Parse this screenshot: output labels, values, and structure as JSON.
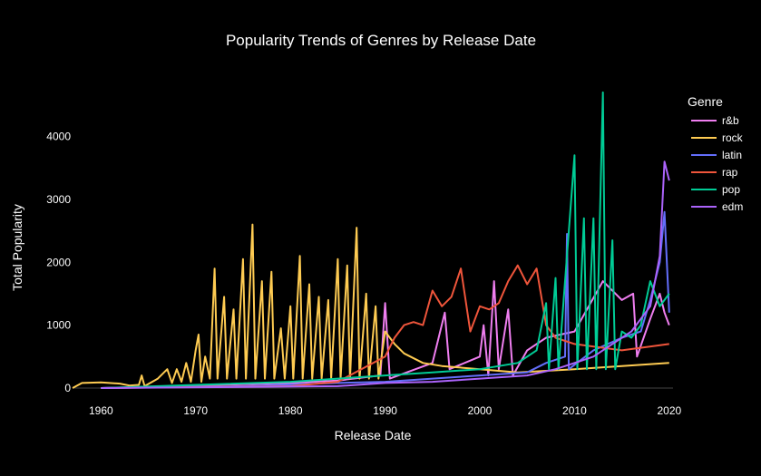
{
  "chart_data": {
    "type": "line",
    "title": "Popularity Trends of Genres by Release Date",
    "xlabel": "Release Date",
    "ylabel": "Total Popularity",
    "xlim": [
      1957,
      2020.4
    ],
    "ylim": [
      0,
      4800
    ],
    "x_ticks": [
      1960,
      1970,
      1980,
      1990,
      2000,
      2010,
      2020
    ],
    "y_ticks": [
      0,
      1000,
      2000,
      3000,
      4000
    ],
    "grid": false,
    "legend_position": "right",
    "legend_title": "Genre",
    "series": [
      {
        "name": "r&b",
        "color": "#ef7ef0",
        "points": [
          [
            1960,
            0
          ],
          [
            1970,
            40
          ],
          [
            1980,
            80
          ],
          [
            1985,
            120
          ],
          [
            1989.5,
            200
          ],
          [
            1990,
            1350
          ],
          [
            1990.5,
            150
          ],
          [
            1995,
            400
          ],
          [
            1996.3,
            1200
          ],
          [
            1996.8,
            300
          ],
          [
            2000,
            500
          ],
          [
            2000.4,
            1000
          ],
          [
            2000.9,
            200
          ],
          [
            2001.5,
            1700
          ],
          [
            2002,
            300
          ],
          [
            2003,
            1250
          ],
          [
            2003.5,
            200
          ],
          [
            2005,
            600
          ],
          [
            2007,
            800
          ],
          [
            2010,
            900
          ],
          [
            2013,
            1700
          ],
          [
            2015,
            1400
          ],
          [
            2016.2,
            1500
          ],
          [
            2016.6,
            500
          ],
          [
            2018,
            1100
          ],
          [
            2019,
            1500
          ],
          [
            2019.5,
            1200
          ],
          [
            2020,
            1000
          ]
        ]
      },
      {
        "name": "rock",
        "color": "#fecb52",
        "points": [
          [
            1957,
            0
          ],
          [
            1958,
            80
          ],
          [
            1960,
            90
          ],
          [
            1962,
            70
          ],
          [
            1963,
            40
          ],
          [
            1964,
            50
          ],
          [
            1964.3,
            200
          ],
          [
            1964.6,
            30
          ],
          [
            1966,
            150
          ],
          [
            1967,
            300
          ],
          [
            1967.5,
            80
          ],
          [
            1968,
            300
          ],
          [
            1968.5,
            100
          ],
          [
            1969,
            400
          ],
          [
            1969.5,
            100
          ],
          [
            1970,
            600
          ],
          [
            1970.3,
            850
          ],
          [
            1970.6,
            100
          ],
          [
            1971,
            500
          ],
          [
            1971.5,
            150
          ],
          [
            1972,
            1900
          ],
          [
            1972.3,
            150
          ],
          [
            1973,
            1450
          ],
          [
            1973.3,
            150
          ],
          [
            1974,
            1250
          ],
          [
            1974.3,
            150
          ],
          [
            1975,
            2050
          ],
          [
            1975.3,
            150
          ],
          [
            1976,
            2600
          ],
          [
            1976.3,
            150
          ],
          [
            1977,
            1700
          ],
          [
            1977.3,
            150
          ],
          [
            1978,
            1850
          ],
          [
            1978.3,
            150
          ],
          [
            1979,
            950
          ],
          [
            1979.4,
            150
          ],
          [
            1980,
            1300
          ],
          [
            1980.3,
            150
          ],
          [
            1981,
            2100
          ],
          [
            1981.3,
            150
          ],
          [
            1982,
            1650
          ],
          [
            1982.3,
            150
          ],
          [
            1983,
            1450
          ],
          [
            1983.3,
            150
          ],
          [
            1984,
            1400
          ],
          [
            1984.3,
            150
          ],
          [
            1985,
            2050
          ],
          [
            1985.3,
            150
          ],
          [
            1986,
            1950
          ],
          [
            1986.3,
            150
          ],
          [
            1987,
            2550
          ],
          [
            1987.3,
            150
          ],
          [
            1988,
            1500
          ],
          [
            1988.3,
            150
          ],
          [
            1989,
            1300
          ],
          [
            1989.3,
            150
          ],
          [
            1990,
            900
          ],
          [
            1991,
            700
          ],
          [
            1992,
            550
          ],
          [
            1994,
            400
          ],
          [
            1996,
            350
          ],
          [
            2000,
            300
          ],
          [
            2004,
            250
          ],
          [
            2010,
            300
          ],
          [
            2015,
            350
          ],
          [
            2020,
            400
          ]
        ]
      },
      {
        "name": "latin",
        "color": "#636efa",
        "points": [
          [
            1960,
            0
          ],
          [
            1975,
            30
          ],
          [
            1985,
            80
          ],
          [
            1990,
            100
          ],
          [
            1995,
            150
          ],
          [
            2000,
            200
          ],
          [
            2005,
            250
          ],
          [
            2007,
            400
          ],
          [
            2009,
            500
          ],
          [
            2009.2,
            2450
          ],
          [
            2009.4,
            300
          ],
          [
            2012,
            600
          ],
          [
            2015,
            800
          ],
          [
            2017,
            900
          ],
          [
            2018,
            1400
          ],
          [
            2019,
            2000
          ],
          [
            2019.5,
            2800
          ],
          [
            2020,
            1200
          ]
        ]
      },
      {
        "name": "rap",
        "color": "#ef553b",
        "points": [
          [
            1960,
            0
          ],
          [
            1980,
            30
          ],
          [
            1985,
            100
          ],
          [
            1990,
            500
          ],
          [
            1991,
            800
          ],
          [
            1992,
            1000
          ],
          [
            1993,
            1050
          ],
          [
            1994,
            1000
          ],
          [
            1995,
            1550
          ],
          [
            1996,
            1300
          ],
          [
            1997,
            1450
          ],
          [
            1998,
            1900
          ],
          [
            1999,
            900
          ],
          [
            2000,
            1300
          ],
          [
            2001,
            1250
          ],
          [
            2002,
            1350
          ],
          [
            2003,
            1700
          ],
          [
            2004,
            1950
          ],
          [
            2005,
            1650
          ],
          [
            2006,
            1900
          ],
          [
            2007,
            1000
          ],
          [
            2008,
            800
          ],
          [
            2010,
            700
          ],
          [
            2015,
            600
          ],
          [
            2020,
            700
          ]
        ]
      },
      {
        "name": "pop",
        "color": "#00cc96",
        "points": [
          [
            1960,
            0
          ],
          [
            1970,
            50
          ],
          [
            1980,
            100
          ],
          [
            1985,
            150
          ],
          [
            1990,
            200
          ],
          [
            1995,
            250
          ],
          [
            2000,
            300
          ],
          [
            2004,
            400
          ],
          [
            2006,
            600
          ],
          [
            2007,
            1350
          ],
          [
            2007.3,
            300
          ],
          [
            2008,
            1750
          ],
          [
            2008.3,
            300
          ],
          [
            2010,
            3700
          ],
          [
            2010.3,
            300
          ],
          [
            2011,
            2700
          ],
          [
            2011.3,
            300
          ],
          [
            2012,
            2700
          ],
          [
            2012.3,
            300
          ],
          [
            2013,
            4700
          ],
          [
            2013.3,
            300
          ],
          [
            2014,
            2350
          ],
          [
            2014.3,
            300
          ],
          [
            2015,
            900
          ],
          [
            2016,
            800
          ],
          [
            2017,
            1000
          ],
          [
            2018,
            1700
          ],
          [
            2019,
            1300
          ],
          [
            2020,
            1500
          ]
        ]
      },
      {
        "name": "edm",
        "color": "#ab63fa",
        "points": [
          [
            1960,
            0
          ],
          [
            1985,
            30
          ],
          [
            1990,
            80
          ],
          [
            1995,
            100
          ],
          [
            2000,
            150
          ],
          [
            2005,
            200
          ],
          [
            2008,
            300
          ],
          [
            2010,
            400
          ],
          [
            2012,
            500
          ],
          [
            2014,
            700
          ],
          [
            2016,
            900
          ],
          [
            2017,
            1100
          ],
          [
            2018,
            1300
          ],
          [
            2019,
            2100
          ],
          [
            2019.5,
            3600
          ],
          [
            2020,
            3300
          ]
        ]
      }
    ]
  }
}
